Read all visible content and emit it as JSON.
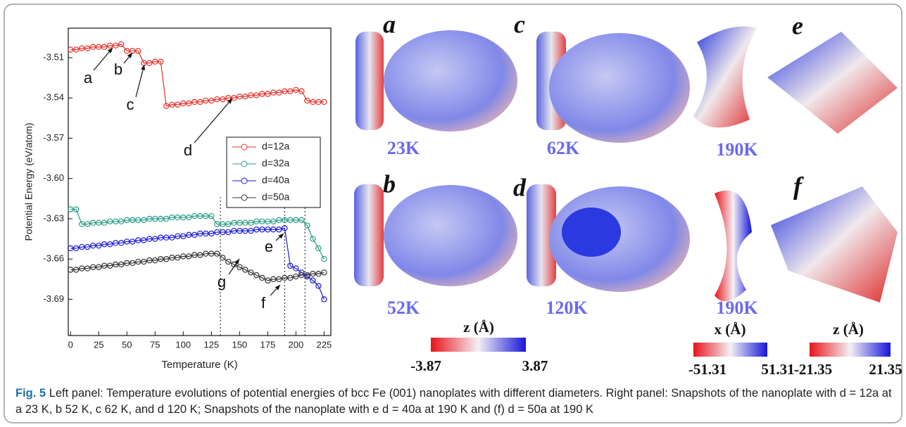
{
  "chart_data": {
    "type": "line",
    "x_label": "Temperature (K)",
    "y_label": "Potential Energy (eV/atom)",
    "x": [
      0,
      5,
      10,
      15,
      20,
      25,
      30,
      35,
      40,
      45,
      50,
      55,
      60,
      65,
      70,
      75,
      80,
      85,
      90,
      95,
      100,
      105,
      110,
      115,
      120,
      125,
      130,
      135,
      140,
      145,
      150,
      155,
      160,
      165,
      170,
      175,
      180,
      185,
      190,
      195,
      200,
      205,
      210,
      215,
      220,
      225
    ],
    "series": [
      {
        "name": "d=12a",
        "color": "#e8302a",
        "values": [
          -3.504,
          -3.504,
          -3.503,
          -3.503,
          -3.502,
          -3.502,
          -3.502,
          -3.501,
          -3.501,
          -3.5,
          -3.505,
          -3.505,
          -3.505,
          -3.514,
          -3.514,
          -3.513,
          -3.513,
          -3.546,
          -3.545,
          -3.545,
          -3.544,
          -3.544,
          -3.543,
          -3.543,
          -3.542,
          -3.542,
          -3.541,
          -3.541,
          -3.54,
          -3.54,
          -3.539,
          -3.539,
          -3.538,
          -3.538,
          -3.537,
          -3.537,
          -3.536,
          -3.536,
          -3.535,
          -3.535,
          -3.534,
          -3.535,
          -3.542,
          -3.543,
          -3.543,
          -3.543
        ]
      },
      {
        "name": "d=32a",
        "color": "#2a9d86",
        "values": [
          -3.623,
          -3.623,
          -3.634,
          -3.634,
          -3.633,
          -3.633,
          -3.633,
          -3.632,
          -3.632,
          -3.632,
          -3.631,
          -3.631,
          -3.631,
          -3.631,
          -3.63,
          -3.63,
          -3.63,
          -3.63,
          -3.629,
          -3.629,
          -3.629,
          -3.629,
          -3.628,
          -3.628,
          -3.628,
          -3.628,
          -3.634,
          -3.634,
          -3.634,
          -3.633,
          -3.633,
          -3.633,
          -3.633,
          -3.632,
          -3.632,
          -3.632,
          -3.632,
          -3.631,
          -3.631,
          -3.631,
          -3.631,
          -3.631,
          -3.635,
          -3.645,
          -3.652,
          -3.66
        ]
      },
      {
        "name": "d=40a",
        "color": "#1a1ad6",
        "values": [
          -3.652,
          -3.652,
          -3.651,
          -3.651,
          -3.65,
          -3.65,
          -3.649,
          -3.649,
          -3.648,
          -3.648,
          -3.647,
          -3.647,
          -3.646,
          -3.646,
          -3.645,
          -3.645,
          -3.644,
          -3.644,
          -3.644,
          -3.643,
          -3.643,
          -3.642,
          -3.642,
          -3.641,
          -3.641,
          -3.641,
          -3.64,
          -3.64,
          -3.64,
          -3.639,
          -3.639,
          -3.639,
          -3.639,
          -3.638,
          -3.638,
          -3.638,
          -3.638,
          -3.638,
          -3.637,
          -3.665,
          -3.667,
          -3.67,
          -3.673,
          -3.676,
          -3.68,
          -3.69
        ]
      },
      {
        "name": "d=50a",
        "color": "#333333",
        "values": [
          -3.668,
          -3.668,
          -3.667,
          -3.667,
          -3.666,
          -3.666,
          -3.665,
          -3.665,
          -3.664,
          -3.664,
          -3.663,
          -3.663,
          -3.662,
          -3.662,
          -3.661,
          -3.661,
          -3.66,
          -3.66,
          -3.659,
          -3.659,
          -3.658,
          -3.658,
          -3.657,
          -3.657,
          -3.656,
          -3.656,
          -3.656,
          -3.659,
          -3.662,
          -3.664,
          -3.666,
          -3.668,
          -3.67,
          -3.672,
          -3.674,
          -3.676,
          -3.675,
          -3.675,
          -3.674,
          -3.674,
          -3.673,
          -3.672,
          -3.672,
          -3.671,
          -3.671,
          -3.67
        ]
      }
    ],
    "xlim": [
      -2,
      231
    ],
    "xticks": [
      0,
      25,
      50,
      75,
      100,
      125,
      150,
      175,
      200,
      225
    ],
    "ylim": [
      -3.717,
      -3.488
    ],
    "yticks": [
      {
        "value": -3.51,
        "label": "-3.51"
      },
      {
        "value": -3.54,
        "label": "-3.54"
      },
      {
        "value": -3.57,
        "label": "-3.57"
      },
      {
        "value": -3.6,
        "label": "-3.60"
      },
      {
        "value": -3.63,
        "label": "-3.63"
      },
      {
        "value": -3.66,
        "label": "-3.66"
      },
      {
        "value": -3.69,
        "label": "-3.69"
      }
    ],
    "vlines": [
      133,
      190,
      208
    ],
    "annotations": [
      "a",
      "b",
      "c",
      "d",
      "e",
      "f",
      "g"
    ],
    "legend": "right"
  },
  "panels": [
    {
      "label": "a",
      "temperature": "23K"
    },
    {
      "label": "b",
      "temperature": "52K"
    },
    {
      "label": "c",
      "temperature": "62K"
    },
    {
      "label": "d",
      "temperature": "120K"
    },
    {
      "label": "e",
      "temperature": "190K"
    },
    {
      "label": "f",
      "temperature": "190K"
    }
  ],
  "colorbars": [
    {
      "title": "z (Å)",
      "min": -3.87,
      "max": 3.87
    },
    {
      "title": "x (Å)",
      "min": -51.31,
      "max": 51.31
    },
    {
      "title": "z (Å)",
      "min": -21.35,
      "max": 21.35
    }
  ],
  "caption": {
    "label": "Fig. 5",
    "text": "Left panel: Temperature evolutions of potential energies of bcc Fe (001) nanoplates with different diameters. Right panel: Snapshots of the nanoplate with d = 12a at a 23 K, b 52 K, c 62 K, and d 120 K; Snapshots of the nanoplate with e d = 40a at 190 K and (f) d = 50a at 190 K"
  }
}
